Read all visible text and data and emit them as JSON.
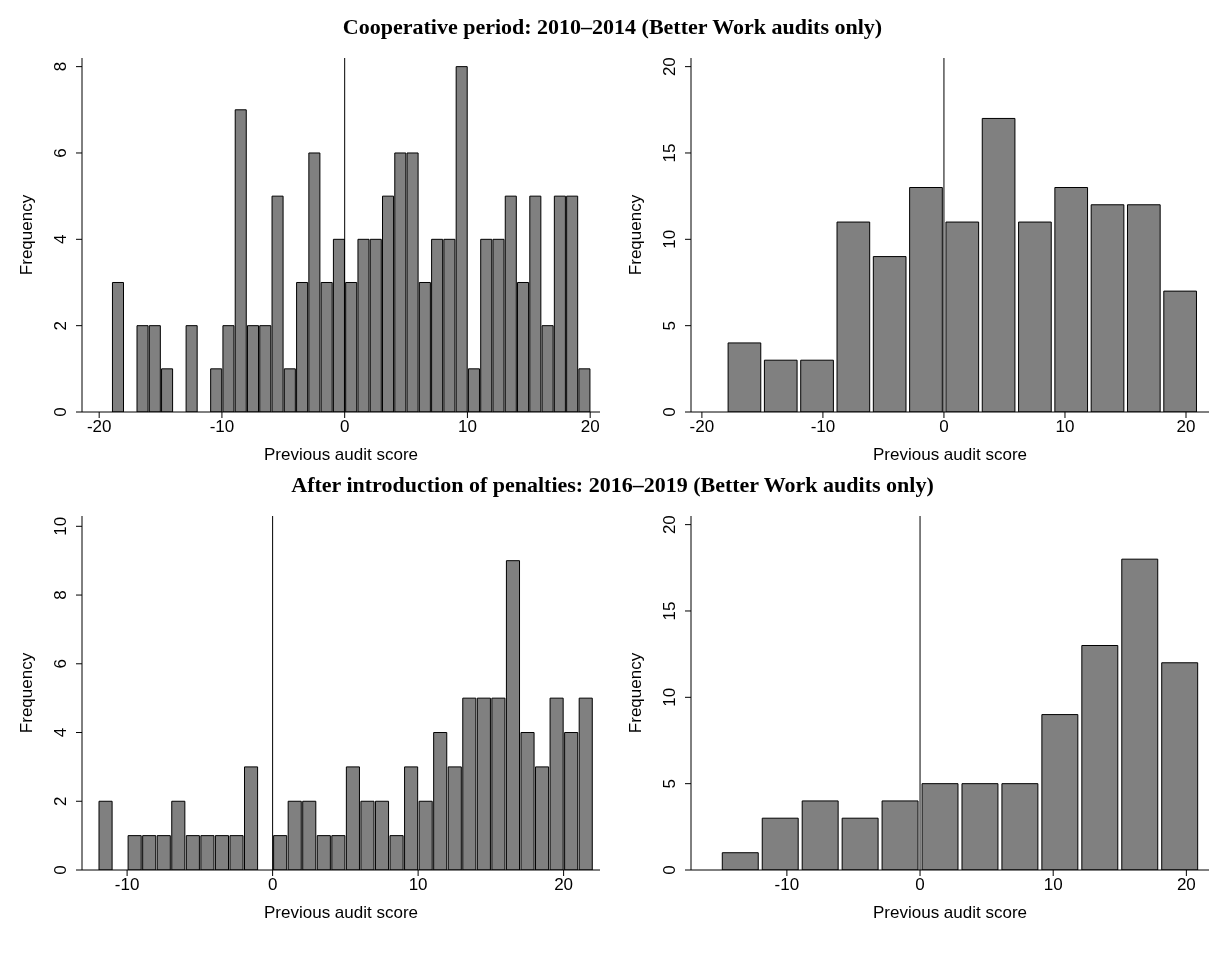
{
  "chart_data": [
    {
      "type": "histogram",
      "title": "Cooperative period: 2010–2014 (Better Work audits only)",
      "xlabel": "Previous audit score",
      "ylabel": "Frequency",
      "color": "#808080",
      "bins": [
        -19,
        -18,
        -17,
        -16,
        -15,
        -14,
        -13,
        -12,
        -11,
        -10,
        -9,
        -8,
        -7,
        -6,
        -5,
        -4,
        -3,
        -2,
        -1,
        0,
        1,
        2,
        3,
        4,
        5,
        6,
        7,
        8,
        9,
        10,
        11,
        12,
        13,
        14,
        15,
        16,
        17,
        18,
        19,
        20
      ],
      "values": [
        3,
        0,
        2,
        2,
        1,
        0,
        2,
        0,
        1,
        2,
        7,
        2,
        2,
        5,
        1,
        3,
        6,
        3,
        4,
        3,
        4,
        4,
        5,
        6,
        6,
        3,
        4,
        4,
        8,
        1,
        4,
        4,
        5,
        3,
        5,
        2,
        5,
        5,
        1
      ],
      "xlim": [
        -21.4,
        20.8
      ],
      "xticks": [
        -20,
        -10,
        0,
        10,
        20
      ],
      "ylim": [
        0,
        8.2
      ],
      "yticks": [
        0,
        2,
        4,
        6,
        8
      ],
      "grid": false,
      "ref_lines": [
        {
          "axis": "x",
          "value": 0
        }
      ]
    },
    {
      "type": "histogram",
      "xlabel": "Previous audit score",
      "ylabel": "Frequency",
      "color": "#808080",
      "bins": [
        -18,
        -15,
        -12,
        -9,
        -6,
        -3,
        0,
        3,
        6,
        9,
        12,
        15,
        18,
        21
      ],
      "values": [
        4,
        3,
        3,
        11,
        9,
        13,
        11,
        17,
        11,
        13,
        12,
        12,
        7
      ],
      "xlim": [
        -20.9,
        21.9
      ],
      "xticks": [
        -20,
        -10,
        0,
        10,
        20
      ],
      "ylim": [
        0,
        20.5
      ],
      "yticks": [
        0,
        5,
        10,
        15,
        20
      ],
      "grid": false,
      "ref_lines": [
        {
          "axis": "x",
          "value": 0
        }
      ]
    },
    {
      "type": "histogram",
      "title": "After introduction of penalties: 2016–2019 (Better Work audits only)",
      "xlabel": "Previous audit score",
      "ylabel": "Frequency",
      "color": "#808080",
      "bins": [
        -12,
        -11,
        -10,
        -9,
        -8,
        -7,
        -6,
        -5,
        -4,
        -3,
        -2,
        -1,
        0,
        1,
        2,
        3,
        4,
        5,
        6,
        7,
        8,
        9,
        10,
        11,
        12,
        13,
        14,
        15,
        16,
        17,
        18,
        19,
        20,
        21,
        22
      ],
      "values": [
        2,
        0,
        1,
        1,
        1,
        2,
        1,
        1,
        1,
        1,
        3,
        0,
        1,
        2,
        2,
        1,
        1,
        3,
        2,
        2,
        1,
        3,
        2,
        4,
        3,
        5,
        5,
        5,
        9,
        4,
        3,
        5,
        4,
        5
      ],
      "xlim": [
        -13.1,
        22.5
      ],
      "xticks": [
        -10,
        0,
        10,
        20
      ],
      "ylim": [
        0,
        10.3
      ],
      "yticks": [
        0,
        2,
        4,
        6,
        8,
        10
      ],
      "grid": false,
      "ref_lines": [
        {
          "axis": "x",
          "value": 0
        }
      ]
    },
    {
      "type": "histogram",
      "xlabel": "Previous audit score",
      "ylabel": "Frequency",
      "color": "#808080",
      "bins": [
        -15,
        -12,
        -9,
        -6,
        -3,
        0,
        3,
        6,
        9,
        12,
        15,
        18,
        21
      ],
      "values": [
        1,
        3,
        4,
        3,
        4,
        5,
        5,
        5,
        9,
        13,
        18,
        12
      ],
      "xlim": [
        -17.2,
        21.7
      ],
      "xticks": [
        -10,
        0,
        10,
        20
      ],
      "ylim": [
        0,
        20.5
      ],
      "yticks": [
        0,
        5,
        10,
        15,
        20
      ],
      "grid": false,
      "ref_lines": [
        {
          "axis": "x",
          "value": 0
        }
      ]
    }
  ]
}
